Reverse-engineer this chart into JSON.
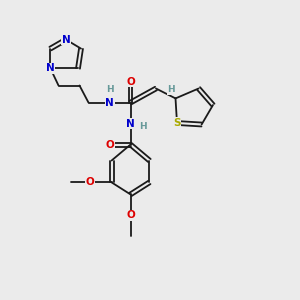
{
  "background_color": "#ebebeb",
  "fig_width": 3.0,
  "fig_height": 3.0,
  "dpi": 100,
  "atom_colors": {
    "N": "#0000cc",
    "O": "#dd0000",
    "S": "#aaaa00",
    "C": "#000000",
    "H": "#669999"
  },
  "bond_color": "#1a1a1a",
  "bond_width": 1.3,
  "font_size_atom": 7.5,
  "font_size_H": 6.5
}
